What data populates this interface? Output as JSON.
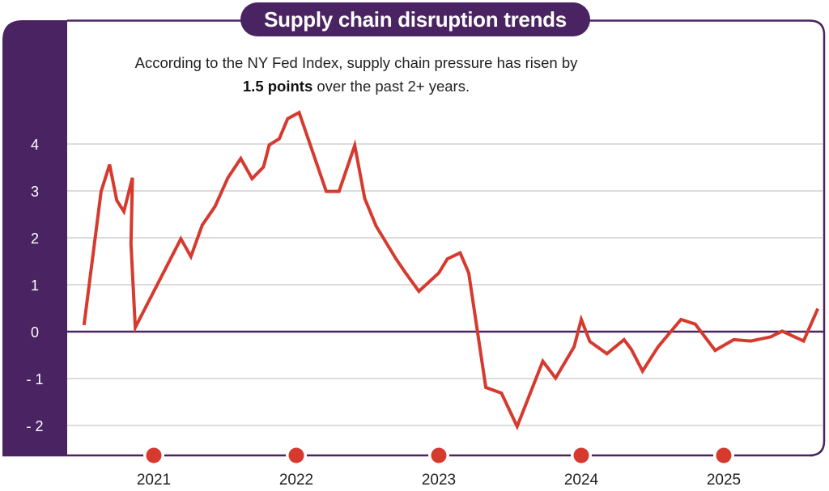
{
  "title": "Supply chain disruption trends",
  "subtitle": {
    "line1": "According to the NY Fed Index, supply chain pressure has risen by",
    "highlight": "1.5 points",
    "line2_rest": " over the past 2+ years."
  },
  "colors": {
    "frame": "#4a2362",
    "line": "#d63a2f",
    "grid": "#d0d0d0",
    "zero_line": "#4a2362",
    "year_marker": "#d63a2f"
  },
  "chart_data": {
    "type": "line",
    "title": "Supply chain disruption trends",
    "xlabel": "",
    "ylabel": "",
    "ylim": [
      -2.3,
      4.9
    ],
    "xlim": [
      2020.45,
      2025.72
    ],
    "grid": true,
    "y_ticks": [
      {
        "value": 4,
        "label": "4"
      },
      {
        "value": 3,
        "label": "3"
      },
      {
        "value": 2,
        "label": "2"
      },
      {
        "value": 1,
        "label": "1"
      },
      {
        "value": 0,
        "label": "0"
      },
      {
        "value": -1,
        "label": "- 1"
      },
      {
        "value": -2,
        "label": "- 2"
      }
    ],
    "x_ticks": [
      {
        "value": 2021,
        "label": "2021"
      },
      {
        "value": 2022,
        "label": "2022"
      },
      {
        "value": 2023,
        "label": "2023"
      },
      {
        "value": 2024,
        "label": "2024"
      },
      {
        "value": 2025,
        "label": "2025"
      }
    ],
    "series": [
      {
        "x": [
          2020.51,
          2020.63,
          2020.69,
          2020.74,
          2020.79,
          2020.85,
          2020.84,
          2020.87,
          2021.19,
          2021.26,
          2021.34,
          2021.43,
          2021.52,
          2021.61,
          2021.69,
          2021.77,
          2021.81,
          2021.88,
          2021.94,
          2022.02,
          2022.21,
          2022.3,
          2022.41,
          2022.48,
          2022.56,
          2022.7,
          2022.77,
          2022.86,
          2023.0,
          2023.06,
          2023.15,
          2023.21,
          2023.33,
          2023.44,
          2023.55,
          2023.73,
          2023.82,
          2023.95,
          2024.0,
          2024.06,
          2024.18,
          2024.3,
          2024.35,
          2024.43,
          2024.54,
          2024.7,
          2024.8,
          2024.94,
          2025.07,
          2025.19,
          2025.33,
          2025.41,
          2025.56,
          2025.66
        ],
        "y": [
          0.14,
          2.99,
          3.56,
          2.8,
          2.56,
          3.28,
          1.87,
          0.09,
          1.98,
          1.6,
          2.27,
          2.67,
          3.28,
          3.69,
          3.26,
          3.51,
          3.98,
          4.11,
          4.54,
          4.67,
          2.99,
          2.99,
          3.97,
          2.84,
          2.25,
          1.55,
          1.24,
          0.86,
          1.25,
          1.55,
          1.68,
          1.25,
          -1.19,
          -1.31,
          -2.02,
          -0.63,
          -0.99,
          -0.32,
          0.26,
          -0.21,
          -0.47,
          -0.17,
          -0.37,
          -0.84,
          -0.32,
          0.26,
          0.16,
          -0.4,
          -0.17,
          -0.2,
          -0.11,
          0.01,
          -0.2,
          0.49
        ]
      }
    ]
  }
}
